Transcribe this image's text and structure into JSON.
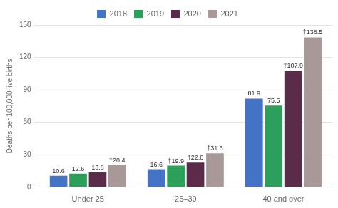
{
  "chart_data": {
    "type": "bar",
    "categories": [
      "Under 25",
      "25–39",
      "40 and over"
    ],
    "series": [
      {
        "name": "2018",
        "color": "#4472C4",
        "values": [
          10.6,
          16.6,
          81.9
        ],
        "value_labels": [
          "10.6",
          "16.6",
          "81.9"
        ]
      },
      {
        "name": "2019",
        "color": "#2CA05A",
        "values": [
          12.6,
          19.9,
          75.5
        ],
        "value_labels": [
          "12.6",
          "†19.9",
          "75.5"
        ]
      },
      {
        "name": "2020",
        "color": "#5B2C4A",
        "values": [
          13.8,
          22.8,
          107.9
        ],
        "value_labels": [
          "13.8",
          "†22.8",
          "†107.9"
        ]
      },
      {
        "name": "2021",
        "color": "#A89898",
        "values": [
          20.4,
          31.3,
          138.5
        ],
        "value_labels": [
          "†20.4",
          "†31.3",
          "†138.5"
        ]
      }
    ],
    "ylabel": "Deaths per 100,000 live births",
    "ylim": [
      0,
      150
    ],
    "yticks": [
      0,
      30,
      60,
      90,
      120,
      150
    ],
    "grid": true,
    "legend": "top",
    "data_labels": true
  }
}
